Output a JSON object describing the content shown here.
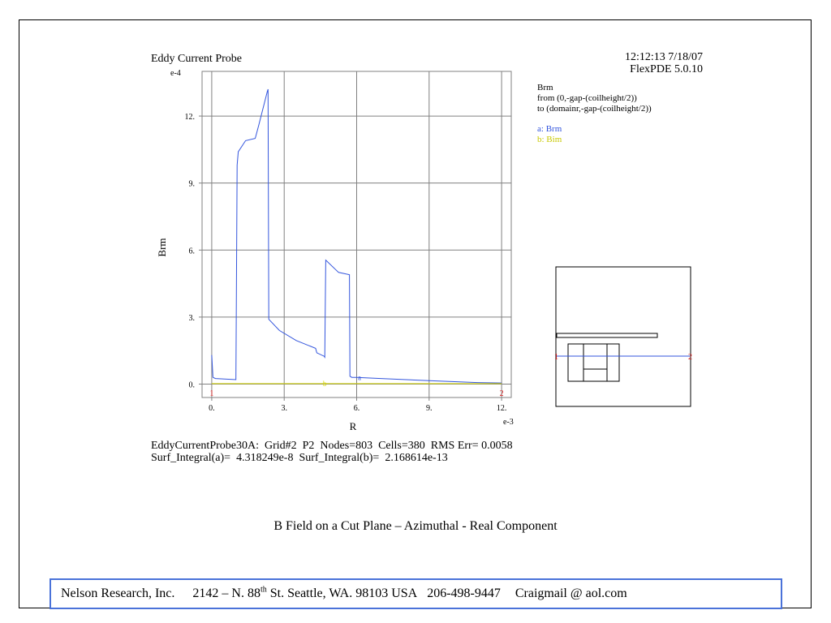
{
  "chart_data": {
    "type": "line",
    "title": "Eddy Current Probe",
    "timestamp": "12:12:13  7/18/07",
    "software": "FlexPDE 5.0.10",
    "xlabel": "R",
    "ylabel": "Brm",
    "x_exponent": "e-3",
    "y_exponent": "e-4",
    "xlim": [
      -0.4,
      12.4
    ],
    "ylim": [
      -0.6,
      14.0
    ],
    "x_ticks": [
      "0.",
      "3.",
      "6.",
      "9.",
      "12."
    ],
    "y_ticks": [
      "0.",
      "3.",
      "6.",
      "9.",
      "12."
    ],
    "grid": true,
    "legend": {
      "header": "Brm",
      "from": "from (0,-gap-(coilheight/2))",
      "to": "to (domainr,-gap-(coilheight/2))",
      "entries": [
        "a: Brm",
        "b: Bim"
      ],
      "placement": "top-right"
    },
    "end_labels": [
      "1",
      "2"
    ],
    "series": [
      {
        "name": "a: Brm",
        "marker": "a",
        "color": "#3355dd",
        "x": [
          0.0,
          0.05,
          0.15,
          1.0,
          1.05,
          1.1,
          1.4,
          1.8,
          1.95,
          2.3,
          2.33,
          2.36,
          2.8,
          3.5,
          4.3,
          4.35,
          4.65,
          4.68,
          4.72,
          5.25,
          5.7,
          5.72,
          5.8,
          6.0,
          7.0,
          9.0,
          11.0,
          12.0
        ],
        "y": [
          1.3,
          0.3,
          0.25,
          0.2,
          9.8,
          10.4,
          10.9,
          11.0,
          11.6,
          13.1,
          13.2,
          2.9,
          2.4,
          1.95,
          1.6,
          1.4,
          1.25,
          1.2,
          5.55,
          5.0,
          4.9,
          0.35,
          0.3,
          0.3,
          0.25,
          0.15,
          0.07,
          0.05
        ]
      },
      {
        "name": "b: Bim",
        "marker": "b",
        "color": "#d4d400",
        "x": [
          0.0,
          12.0
        ],
        "y": [
          0.02,
          0.02
        ]
      }
    ]
  },
  "stats": {
    "line1": "EddyCurrentProbe30A:  Grid#2  P2  Nodes=803  Cells=380  RMS Err= 0.0058",
    "line2": "Surf_Integral(a)=  4.318249e-8  Surf_Integral(b)=  2.168614e-13"
  },
  "caption": "B Field on a Cut Plane – Azimuthal - Real Component",
  "footer": {
    "company": "Nelson Research, Inc.",
    "address_pre": "2142 –  N. 88",
    "address_sup": "th",
    "address_post": " St. Seattle, WA. 98103   USA",
    "phone": "206-498-9447",
    "email": "Craigmail @ aol.com"
  },
  "colors": {
    "series_a": "#3355dd",
    "series_b": "#d4d400",
    "markers": "#dd2222",
    "grid": "#808080",
    "footer_border": "#4a72d9"
  }
}
